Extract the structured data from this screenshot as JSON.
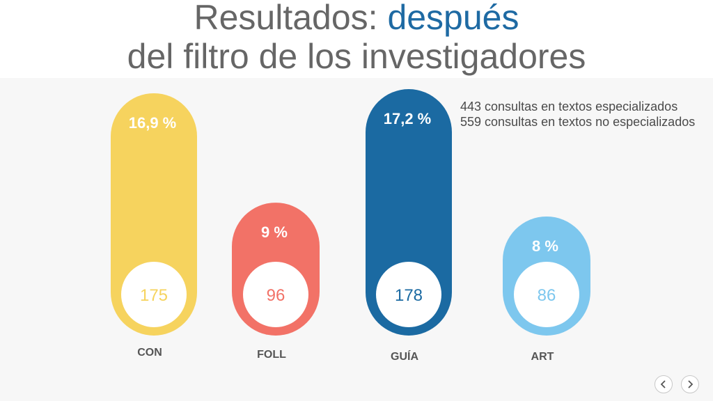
{
  "title": {
    "part1": "Resultados: ",
    "accent": "después",
    "line2": "del filtro de los investigadores"
  },
  "notes": [
    "443 consultas en textos especializados",
    "559 consultas en textos no especializados"
  ],
  "chart_data": {
    "type": "bar",
    "categories": [
      "CON",
      "FOLL",
      "GUÍA",
      "ART"
    ],
    "values": [
      175,
      96,
      178,
      86
    ],
    "percent_labels": [
      "16,9 %",
      "9 %",
      "17,2 %",
      "8 %"
    ],
    "colors": [
      "#f6d35e",
      "#f27267",
      "#1b6aa2",
      "#7dc7ee"
    ]
  },
  "nav": {
    "prev_icon": "chevron-left-icon",
    "next_icon": "chevron-right-icon"
  }
}
